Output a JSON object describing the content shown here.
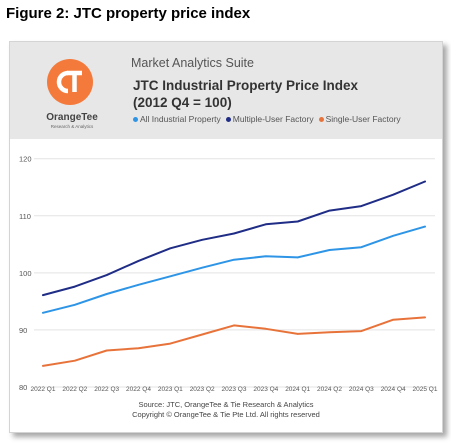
{
  "figure_title": "Figure 2: JTC property price index",
  "header": {
    "suite": "Market Analytics Suite",
    "title_line1": "JTC Industrial Property Price Index",
    "title_line2": "(2012 Q4 = 100)",
    "logo_text": "OrangeTee",
    "logo_subtext": "Research & Analytics",
    "logo_color": "#f47a3b"
  },
  "footer": {
    "source": "Source: JTC, OrangeTee & Tie Research & Analytics",
    "copyright": "Copyright © OrangeTee & Tie Pte Ltd. All rights reserved"
  },
  "chart_data": {
    "type": "line",
    "categories": [
      "2022 Q1",
      "2022 Q2",
      "2022 Q3",
      "2022 Q4",
      "2023 Q1",
      "2023 Q2",
      "2023 Q3",
      "2023 Q4",
      "2024 Q1",
      "2024 Q2",
      "2024 Q3",
      "2024 Q4",
      "2025 Q1"
    ],
    "series": [
      {
        "name": "All Industrial Property",
        "color": "#2e95e6",
        "values": [
          93.0,
          94.4,
          96.3,
          97.9,
          99.4,
          100.9,
          102.3,
          102.9,
          102.7,
          104.0,
          104.5,
          106.5,
          108.1
        ]
      },
      {
        "name": "Multiple-User Factory",
        "color": "#1f2d86",
        "values": [
          96.1,
          97.6,
          99.6,
          102.1,
          104.3,
          105.8,
          106.9,
          108.5,
          109.0,
          110.9,
          111.7,
          113.7,
          116.0
        ]
      },
      {
        "name": "Single-User Factory",
        "color": "#e8733a",
        "values": [
          83.7,
          84.6,
          86.4,
          86.8,
          87.6,
          89.2,
          90.8,
          90.2,
          89.3,
          89.6,
          89.8,
          91.8,
          92.2
        ]
      }
    ],
    "yticks": [
      80,
      90,
      100,
      110,
      120
    ],
    "ylim": [
      80,
      121
    ],
    "grid": true,
    "legend": "top-left"
  }
}
